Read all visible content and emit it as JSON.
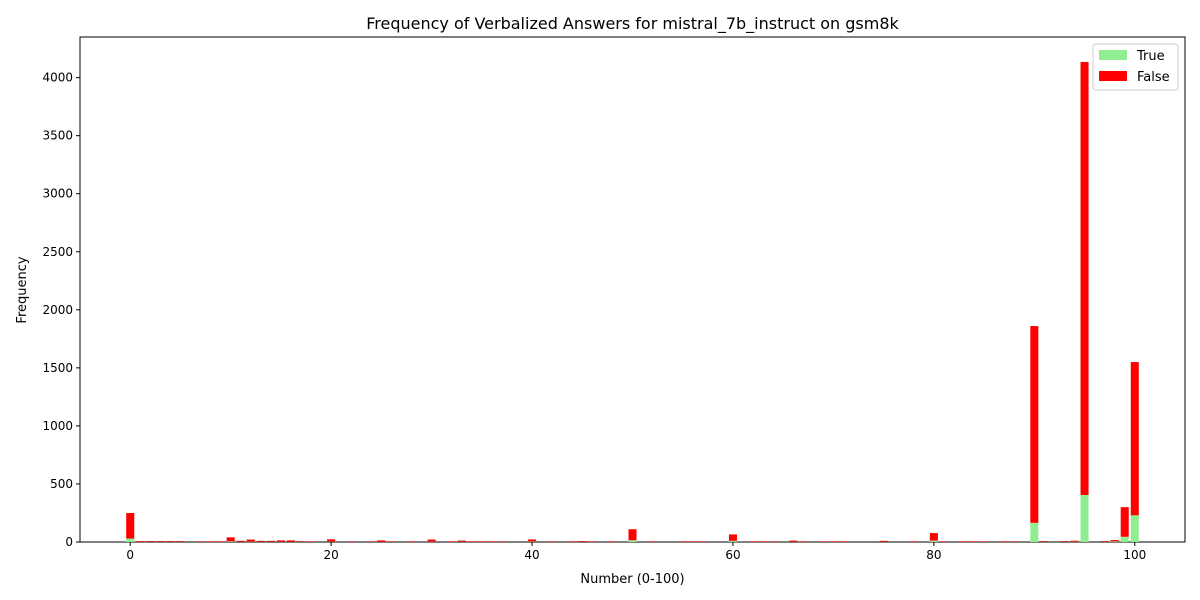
{
  "chart_data": {
    "type": "bar",
    "stacked": true,
    "title": "Frequency of Verbalized Answers for mistral_7b_instruct on gsm8k",
    "xlabel": "Number (0-100)",
    "ylabel": "Frequency",
    "xlim": [
      -5,
      105
    ],
    "ylim": [
      0,
      4350
    ],
    "xticks": [
      0,
      20,
      40,
      60,
      80,
      100
    ],
    "yticks": [
      0,
      500,
      1000,
      1500,
      2000,
      2500,
      3000,
      3500,
      4000
    ],
    "grid": false,
    "legend_position": "top-right",
    "x": [
      0,
      1,
      2,
      3,
      4,
      5,
      7,
      8,
      9,
      10,
      11,
      12,
      13,
      14,
      15,
      16,
      17,
      18,
      20,
      22,
      24,
      25,
      26,
      28,
      30,
      32,
      33,
      34,
      35,
      36,
      37,
      40,
      42,
      44,
      45,
      46,
      48,
      50,
      52,
      55,
      56,
      57,
      60,
      62,
      63,
      64,
      66,
      67,
      69,
      70,
      71,
      75,
      78,
      80,
      81,
      83,
      84,
      85,
      87,
      88,
      90,
      91,
      93,
      94,
      95,
      97,
      98,
      99,
      100
    ],
    "series": [
      {
        "name": "True",
        "color": "#90ee90",
        "values": [
          30,
          2,
          2,
          2,
          2,
          2,
          1,
          1,
          1,
          5,
          2,
          3,
          2,
          2,
          2,
          2,
          1,
          1,
          3,
          1,
          1,
          2,
          1,
          1,
          3,
          1,
          2,
          1,
          1,
          1,
          1,
          4,
          1,
          1,
          2,
          1,
          1,
          15,
          1,
          1,
          1,
          1,
          10,
          1,
          1,
          1,
          2,
          1,
          1,
          1,
          1,
          2,
          1,
          12,
          1,
          1,
          1,
          1,
          1,
          1,
          165,
          2,
          2,
          3,
          405,
          2,
          5,
          45,
          230
        ]
      },
      {
        "name": "False",
        "color": "#ff0000",
        "values": [
          220,
          6,
          6,
          6,
          6,
          6,
          5,
          5,
          5,
          35,
          8,
          18,
          8,
          8,
          12,
          12,
          6,
          5,
          20,
          5,
          5,
          12,
          5,
          5,
          18,
          5,
          10,
          5,
          5,
          5,
          5,
          18,
          5,
          5,
          6,
          5,
          5,
          95,
          5,
          5,
          5,
          5,
          55,
          5,
          5,
          5,
          10,
          5,
          5,
          5,
          5,
          8,
          5,
          65,
          5,
          5,
          5,
          5,
          5,
          5,
          1695,
          6,
          6,
          8,
          3730,
          6,
          12,
          255,
          1320
        ]
      }
    ]
  }
}
